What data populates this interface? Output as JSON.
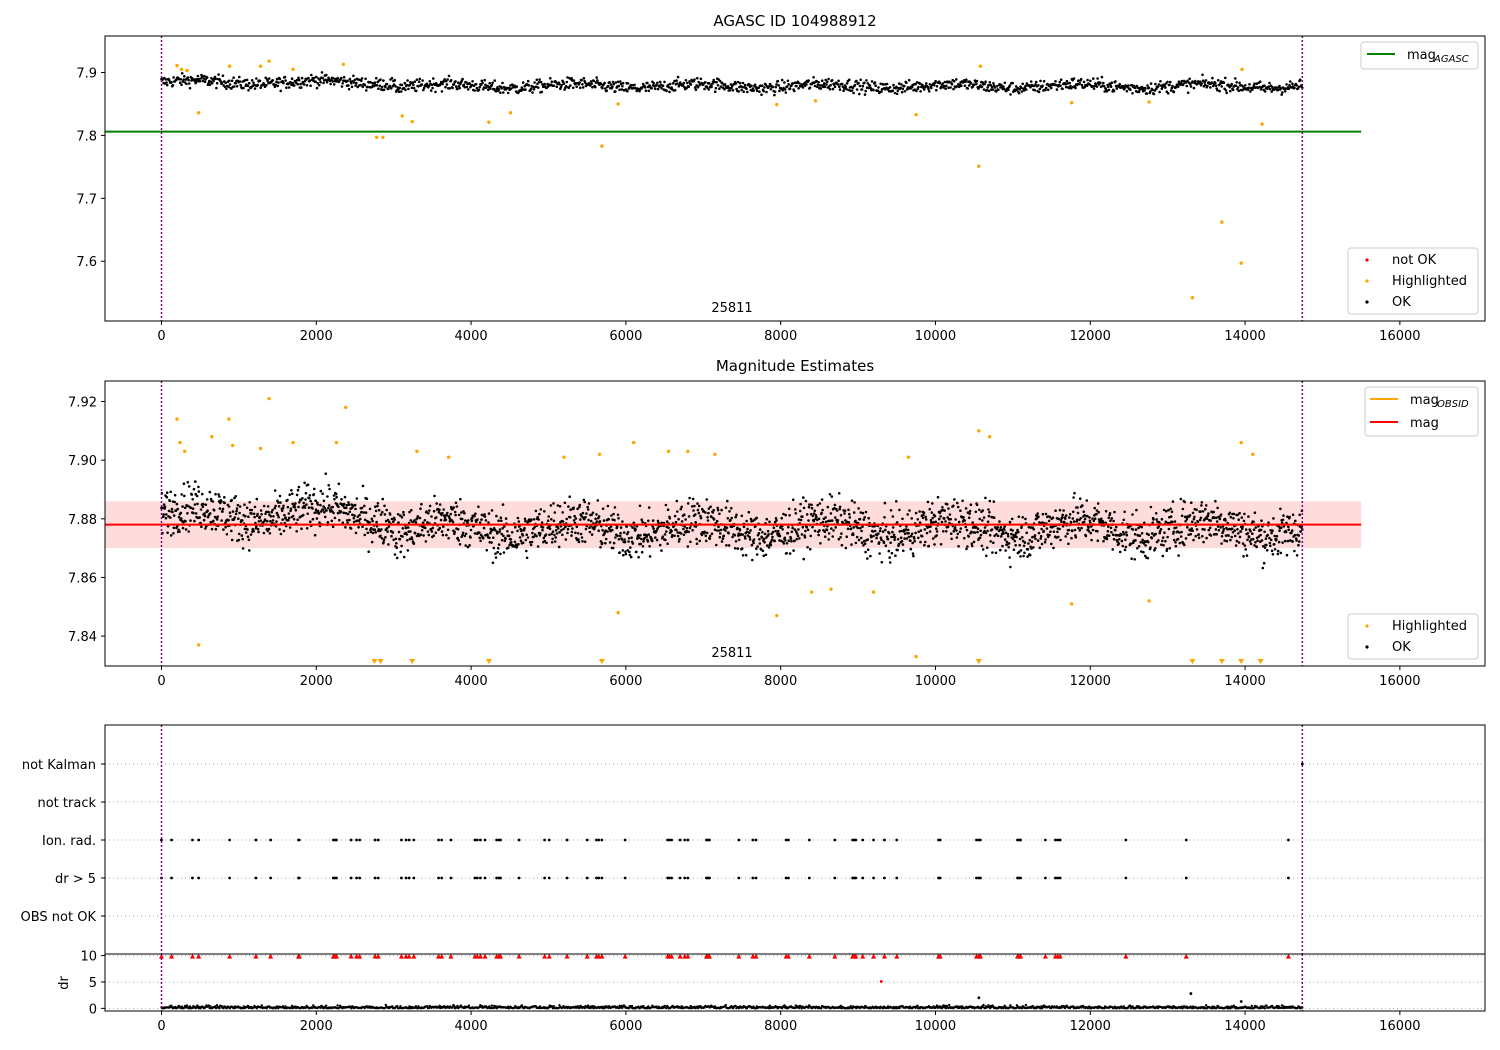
{
  "figure": {
    "panel1_title": "AGASC ID 104988912",
    "panel2_title": "Magnitude Estimates",
    "obsid_label": "25811"
  },
  "colors": {
    "ok": "#000000",
    "highlighted": "#ffa500",
    "not_ok": "#ff0000",
    "mag_agasc": "#008000",
    "mag_obsid": "#ffa500",
    "mag": "#ff0000",
    "band": "#ffc0c0",
    "obs_boundary": "#800080"
  },
  "legends": {
    "panel1_lines": [
      {
        "text": "mag",
        "sub": "AGASC",
        "color": "#008000"
      }
    ],
    "panel1_markers": [
      {
        "text": "not OK",
        "color": "#ff0000"
      },
      {
        "text": "Highlighted",
        "color": "#ffa500"
      },
      {
        "text": "OK",
        "color": "#000000"
      }
    ],
    "panel2_lines": [
      {
        "text": "mag",
        "sub": "OBSID",
        "color": "#ffa500"
      },
      {
        "text": "mag",
        "sub": "",
        "color": "#ff0000"
      }
    ],
    "panel2_markers": [
      {
        "text": "Highlighted",
        "color": "#ffa500"
      },
      {
        "text": "OK",
        "color": "#000000"
      }
    ]
  },
  "chart_data": [
    {
      "type": "scatter",
      "title": "AGASC ID 104988912",
      "xlim": [
        -730,
        17100
      ],
      "ylim": [
        7.505,
        7.958
      ],
      "xticks": [
        0,
        2000,
        4000,
        6000,
        8000,
        10000,
        12000,
        14000,
        16000
      ],
      "yticks": [
        7.6,
        7.7,
        7.8,
        7.9
      ],
      "obs_boundaries": [
        0,
        14740
      ],
      "obsid_annotation": {
        "text": "25811",
        "x": 7300
      },
      "mag_agasc": {
        "value": 7.806,
        "x_range": [
          -730,
          15500
        ]
      },
      "ok_series": {
        "x_range": [
          0,
          14740
        ],
        "y_center": 7.88,
        "y_spread": 0.01
      },
      "highlighted_points": [
        [
          200,
          7.911
        ],
        [
          260,
          7.905
        ],
        [
          330,
          7.903
        ],
        [
          480,
          7.836
        ],
        [
          880,
          7.91
        ],
        [
          1280,
          7.91
        ],
        [
          1390,
          7.918
        ],
        [
          1700,
          7.905
        ],
        [
          2350,
          7.913
        ],
        [
          2780,
          7.797
        ],
        [
          2860,
          7.797
        ],
        [
          3110,
          7.831
        ],
        [
          3240,
          7.822
        ],
        [
          4230,
          7.821
        ],
        [
          4510,
          7.836
        ],
        [
          5690,
          7.783
        ],
        [
          5900,
          7.85
        ],
        [
          7950,
          7.849
        ],
        [
          8450,
          7.855
        ],
        [
          9750,
          7.833
        ],
        [
          10560,
          7.751
        ],
        [
          10580,
          7.91
        ],
        [
          11760,
          7.852
        ],
        [
          12760,
          7.853
        ],
        [
          13320,
          7.542
        ],
        [
          13700,
          7.662
        ],
        [
          13950,
          7.597
        ],
        [
          13960,
          7.905
        ],
        [
          14220,
          7.818
        ]
      ],
      "not_ok_points": []
    },
    {
      "type": "scatter",
      "title": "Magnitude Estimates",
      "xlim": [
        -730,
        17100
      ],
      "ylim": [
        7.8298,
        7.927
      ],
      "xticks": [
        0,
        2000,
        4000,
        6000,
        8000,
        10000,
        12000,
        14000,
        16000
      ],
      "yticks": [
        7.84,
        7.86,
        7.88,
        7.9,
        7.92
      ],
      "obs_boundaries": [
        0,
        14740
      ],
      "obsid_annotation": {
        "text": "25811",
        "x": 7300
      },
      "mag": {
        "value": 7.878,
        "band": [
          7.87,
          7.886
        ],
        "x_range": [
          -730,
          15500
        ]
      },
      "mag_obsid": {
        "value": 7.878,
        "x_range": [
          0,
          14740
        ]
      },
      "ok_series": {
        "x_range": [
          0,
          14740
        ],
        "y_center": 7.878,
        "y_spread": 0.008
      },
      "highlighted_points": [
        [
          200,
          7.914
        ],
        [
          240,
          7.906
        ],
        [
          300,
          7.903
        ],
        [
          480,
          7.837
        ],
        [
          650,
          7.908
        ],
        [
          870,
          7.914
        ],
        [
          920,
          7.905
        ],
        [
          1280,
          7.904
        ],
        [
          1390,
          7.921
        ],
        [
          1700,
          7.906
        ],
        [
          2260,
          7.906
        ],
        [
          2380,
          7.918
        ],
        [
          3300,
          7.903
        ],
        [
          3710,
          7.901
        ],
        [
          5200,
          7.901
        ],
        [
          5660,
          7.902
        ],
        [
          5900,
          7.848
        ],
        [
          6100,
          7.906
        ],
        [
          6550,
          7.903
        ],
        [
          6800,
          7.903
        ],
        [
          7150,
          7.902
        ],
        [
          7950,
          7.847
        ],
        [
          8400,
          7.855
        ],
        [
          8650,
          7.856
        ],
        [
          9200,
          7.855
        ],
        [
          9650,
          7.901
        ],
        [
          9750,
          7.833
        ],
        [
          10560,
          7.91
        ],
        [
          10700,
          7.908
        ],
        [
          11760,
          7.851
        ],
        [
          12760,
          7.852
        ],
        [
          13950,
          7.906
        ],
        [
          14100,
          7.902
        ]
      ],
      "below_range_markers_x": [
        2750,
        2830,
        3240,
        4230,
        5690,
        10560,
        13320,
        13700,
        13950,
        14200
      ]
    },
    {
      "type": "scatter",
      "title": "",
      "categories": [
        "not Kalman",
        "not track",
        "Ion. rad.",
        "dr > 5",
        "OBS not OK"
      ],
      "xlim": [
        -730,
        17100
      ],
      "obs_boundaries": [
        0,
        14740
      ],
      "flag_x": [
        0,
        130,
        400,
        480,
        880,
        1220,
        1410,
        1770,
        1780,
        2220,
        2240,
        2260,
        2450,
        2520,
        2560,
        2760,
        2800,
        3100,
        3160,
        3200,
        3260,
        3580,
        3620,
        3740,
        4050,
        4080,
        4120,
        4180,
        4330,
        4360,
        4380,
        4620,
        4950,
        5010,
        5240,
        5500,
        5620,
        5650,
        5690,
        5990,
        6540,
        6560,
        6590,
        6700,
        6760,
        6800,
        7040,
        7060,
        7080,
        7460,
        7640,
        7680,
        8070,
        8100,
        8370,
        8700,
        8930,
        8950,
        8970,
        9060,
        9200,
        9340,
        9500,
        10040,
        10060,
        10530,
        10560,
        10580,
        11060,
        11080,
        11100,
        11420,
        11550,
        11580,
        11610,
        12460,
        13240,
        14560
      ],
      "not_kalman_x": [
        14740
      ]
    },
    {
      "type": "scatter",
      "title": "",
      "ylabel": "dr",
      "xlim": [
        -730,
        17100
      ],
      "ylim": [
        -0.5,
        10.3
      ],
      "xticks": [
        0,
        2000,
        4000,
        6000,
        8000,
        10000,
        12000,
        14000,
        16000
      ],
      "yticks": [
        0,
        5,
        10
      ],
      "obs_boundaries": [
        0,
        14740
      ],
      "ok_series": {
        "x_range": [
          0,
          14740
        ],
        "y_max": 0.8
      },
      "outlier_points": [
        [
          9300,
          5.1
        ],
        [
          10560,
          2.0
        ],
        [
          13300,
          2.8
        ],
        [
          13950,
          1.3
        ]
      ],
      "clipped_dr_markers_x": [
        0,
        130,
        400,
        480,
        880,
        1220,
        1410,
        1770,
        1780,
        2220,
        2240,
        2260,
        2450,
        2520,
        2560,
        2760,
        2800,
        3100,
        3160,
        3200,
        3260,
        3580,
        3620,
        3740,
        4050,
        4080,
        4120,
        4180,
        4330,
        4360,
        4380,
        4620,
        4950,
        5010,
        5240,
        5500,
        5620,
        5650,
        5690,
        5990,
        6540,
        6560,
        6590,
        6700,
        6760,
        6800,
        7040,
        7060,
        7080,
        7460,
        7640,
        7680,
        8070,
        8100,
        8370,
        8700,
        8930,
        8950,
        8970,
        9060,
        9200,
        9340,
        9500,
        10040,
        10060,
        10530,
        10560,
        10580,
        11060,
        11080,
        11100,
        11420,
        11550,
        11580,
        11610,
        12460,
        13240,
        14560
      ]
    }
  ]
}
